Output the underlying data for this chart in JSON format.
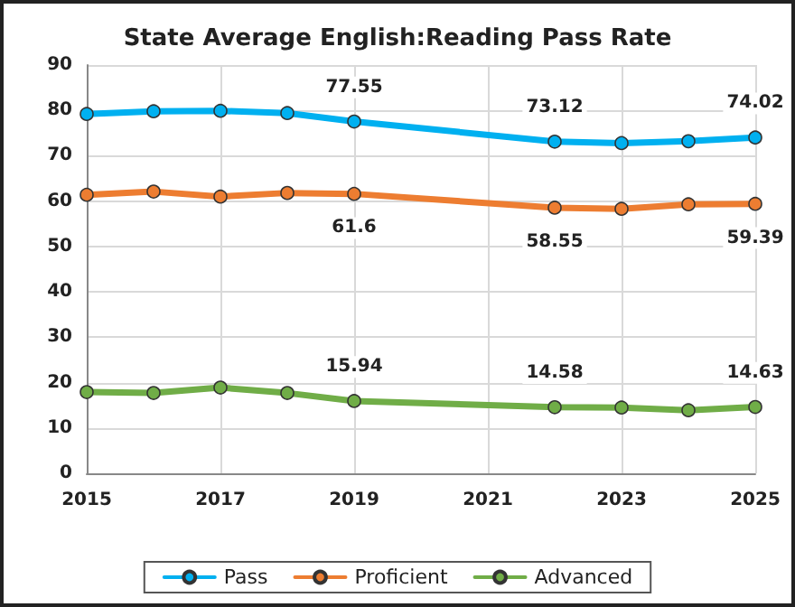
{
  "chart_data": {
    "type": "line",
    "title": "State Average English:Reading Pass Rate",
    "x": [
      2015,
      2016,
      2017,
      2018,
      2019,
      2022,
      2023,
      2024,
      2025
    ],
    "series": [
      {
        "name": "Pass",
        "color": "#00b0f0",
        "values": [
          79.2,
          79.8,
          79.9,
          79.4,
          77.55,
          73.12,
          72.8,
          73.2,
          74.02
        ],
        "value_labels": [
          null,
          null,
          null,
          null,
          "77.55",
          "73.12",
          null,
          null,
          "74.02"
        ]
      },
      {
        "name": "Proficient",
        "color": "#ed7d31",
        "values": [
          61.4,
          62.1,
          61.0,
          61.8,
          61.6,
          58.55,
          58.3,
          59.3,
          59.39
        ],
        "value_labels": [
          null,
          null,
          null,
          null,
          "61.6",
          "58.55",
          null,
          null,
          "59.39"
        ]
      },
      {
        "name": "Advanced",
        "color": "#70ad47",
        "values": [
          17.9,
          17.7,
          18.9,
          17.7,
          15.94,
          14.58,
          14.5,
          13.9,
          14.63
        ],
        "value_labels": [
          null,
          null,
          null,
          null,
          "15.94",
          "14.58",
          null,
          null,
          "14.63"
        ]
      }
    ],
    "xlim": [
      2015,
      2025
    ],
    "xticks": [
      2015,
      2017,
      2019,
      2021,
      2023,
      2025
    ],
    "ylim": [
      0,
      90
    ],
    "yticks": [
      0,
      10,
      20,
      30,
      40,
      50,
      60,
      70,
      80,
      90
    ],
    "grid": true,
    "legend": "bottom",
    "marker": "circle",
    "line_style": "solid"
  }
}
